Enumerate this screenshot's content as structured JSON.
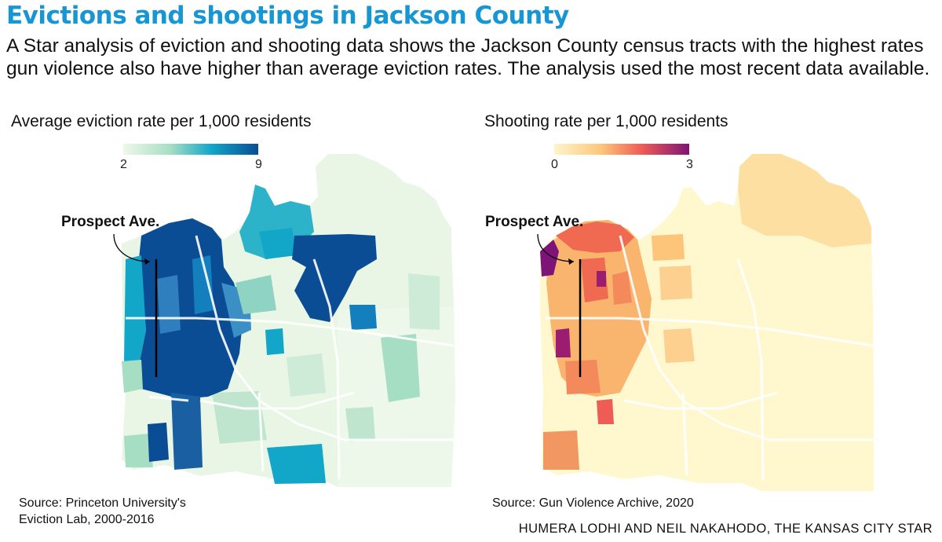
{
  "title": "Evictions and shootings in Jackson County",
  "dek": "A Star analysis of eviction and shooting data shows the Jackson County census tracts with the highest rates gun violence also have higher than average eviction rates. The analysis used the most recent data available.",
  "maps": [
    {
      "title": "Average eviction rate per 1,000 residents",
      "legend": {
        "min": "2",
        "max": "9",
        "colors": [
          "#eef8ea",
          "#a6dec4",
          "#12a7c9",
          "#0b4d94"
        ]
      },
      "callout": "Prospect Ave.",
      "source_line1": "Source: Princeton University's",
      "source_line2": "Eviction Lab, 2000-2016"
    },
    {
      "title": "Shooting rate per 1,000 residents",
      "legend": {
        "min": "0",
        "max": "3",
        "colors": [
          "#fff5c9",
          "#fdc57a",
          "#ef5b55",
          "#7e1477"
        ]
      },
      "callout": "Prospect Ave.",
      "source_line1": "Source: Gun Violence Archive, 2020"
    }
  ],
  "credit": "HUMERA LODHI AND NEIL NAKAHODO, THE KANSAS CITY STAR"
}
